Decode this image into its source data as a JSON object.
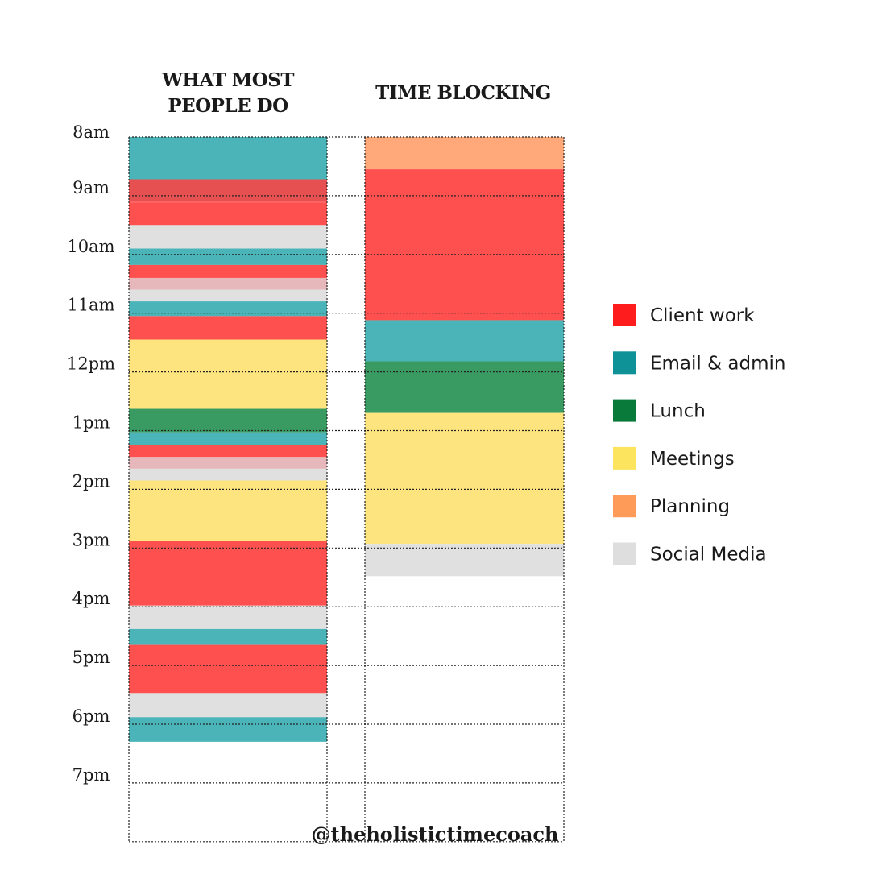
{
  "chart_data": {
    "type": "timeline",
    "hours": [
      "8am",
      "9am",
      "10am",
      "11am",
      "12pm",
      "1pm",
      "2pm",
      "3pm",
      "4pm",
      "5pm",
      "6pm",
      "7pm"
    ],
    "categories": [
      {
        "key": "client",
        "label": "Client work",
        "color": "#ff5050",
        "legend_color": "#ff1c1c"
      },
      {
        "key": "email",
        "label": "Email & admin",
        "color": "#4ab4b8",
        "legend_color": "#0e9297"
      },
      {
        "key": "lunch",
        "label": "Lunch",
        "color": "#3a9b62",
        "legend_color": "#0a7a3a"
      },
      {
        "key": "meetings",
        "label": "Meetings",
        "color": "#fde47e",
        "legend_color": "#fde45e"
      },
      {
        "key": "planning",
        "label": "Planning",
        "color": "#ffa97a",
        "legend_color": "#ff9b58"
      },
      {
        "key": "social",
        "label": "Social Media",
        "color": "#e0e0e0",
        "legend_color": "#dedede"
      }
    ],
    "columns": [
      {
        "title_lines": [
          "WHAT MOST",
          "PEOPLE DO"
        ],
        "blocks": [
          {
            "cat": "email",
            "start": 8.0,
            "end": 8.72
          },
          {
            "cat": "client",
            "start": 8.72,
            "end": 9.1,
            "shade": "#e65050"
          },
          {
            "cat": "client",
            "start": 9.1,
            "end": 9.12
          },
          {
            "cat": "client",
            "start": 9.12,
            "end": 9.5
          },
          {
            "cat": "social",
            "start": 9.5,
            "end": 9.9
          },
          {
            "cat": "email",
            "start": 9.9,
            "end": 10.18
          },
          {
            "cat": "client",
            "start": 10.18,
            "end": 10.4
          },
          {
            "cat": "client",
            "start": 10.4,
            "end": 10.6,
            "shade": "#e6b8bb"
          },
          {
            "cat": "social",
            "start": 10.6,
            "end": 10.8
          },
          {
            "cat": "email",
            "start": 10.8,
            "end": 11.05
          },
          {
            "cat": "client",
            "start": 11.05,
            "end": 11.45
          },
          {
            "cat": "meetings",
            "start": 11.45,
            "end": 12.63
          },
          {
            "cat": "lunch",
            "start": 12.63,
            "end": 13.03
          },
          {
            "cat": "email",
            "start": 13.03,
            "end": 13.25
          },
          {
            "cat": "client",
            "start": 13.25,
            "end": 13.45
          },
          {
            "cat": "client",
            "start": 13.45,
            "end": 13.65,
            "shade": "#e6b8bb"
          },
          {
            "cat": "social",
            "start": 13.65,
            "end": 13.85
          },
          {
            "cat": "meetings",
            "start": 13.85,
            "end": 14.88
          },
          {
            "cat": "client",
            "start": 14.88,
            "end": 15.98
          },
          {
            "cat": "social",
            "start": 15.98,
            "end": 16.38
          },
          {
            "cat": "email",
            "start": 16.38,
            "end": 16.65
          },
          {
            "cat": "client",
            "start": 16.65,
            "end": 17.47
          },
          {
            "cat": "social",
            "start": 17.47,
            "end": 17.88
          },
          {
            "cat": "email",
            "start": 17.88,
            "end": 18.3
          }
        ]
      },
      {
        "title_lines": [
          "TIME BLOCKING"
        ],
        "blocks": [
          {
            "cat": "planning",
            "start": 8.0,
            "end": 8.55
          },
          {
            "cat": "client",
            "start": 8.55,
            "end": 11.12
          },
          {
            "cat": "email",
            "start": 11.12,
            "end": 11.82
          },
          {
            "cat": "lunch",
            "start": 11.82,
            "end": 12.7
          },
          {
            "cat": "meetings",
            "start": 12.7,
            "end": 14.93
          },
          {
            "cat": "social",
            "start": 14.93,
            "end": 15.48
          }
        ]
      }
    ]
  },
  "footer": {
    "handle": "@theholistictimecoach"
  }
}
